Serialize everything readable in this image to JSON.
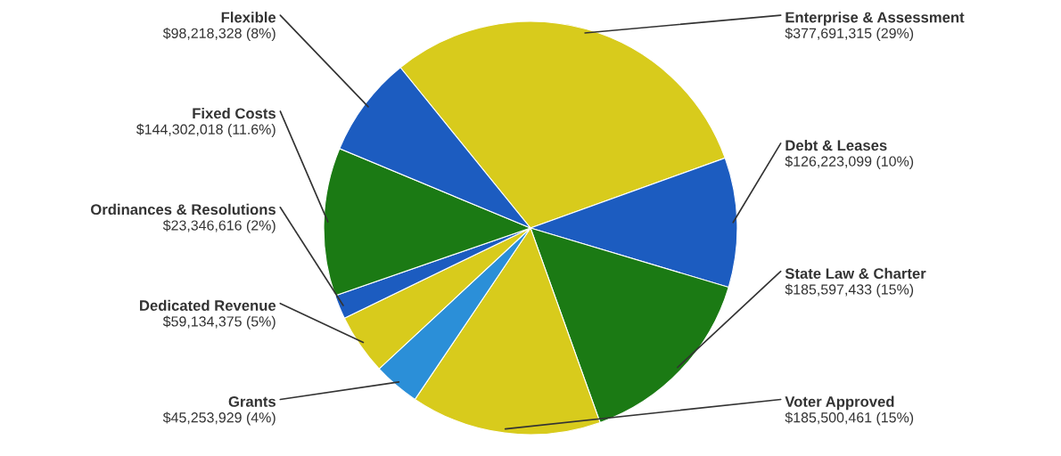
{
  "chart_data": {
    "type": "pie",
    "categories": [
      "Enterprise & Assessment",
      "Debt & Leases",
      "State Law & Charter",
      "Voter Approved",
      "Grants",
      "Dedicated Revenue",
      "Ordinances & Resolutions",
      "Fixed Costs",
      "Flexible"
    ],
    "values": [
      377691315,
      126223099,
      185597433,
      185500461,
      45253929,
      59134375,
      23346616,
      144302018,
      98218328
    ],
    "value_labels": [
      "$377,691,315 (29%)",
      "$126,223,099 (10%)",
      "$185,597,433 (15%)",
      "$185,500,461 (15%)",
      "$45,253,929 (4%)",
      "$59,134,375 (5%)",
      "$23,346,616 (2%)",
      "$144,302,018 (11.6%)",
      "$98,218,328 (8%)"
    ],
    "colors": [
      "#d8cb1c",
      "#1c5cc0",
      "#1b7a14",
      "#d8cb1c",
      "#2b8fd8",
      "#d8cb1c",
      "#1c5cc0",
      "#1b7a14",
      "#1c5cc0"
    ]
  }
}
